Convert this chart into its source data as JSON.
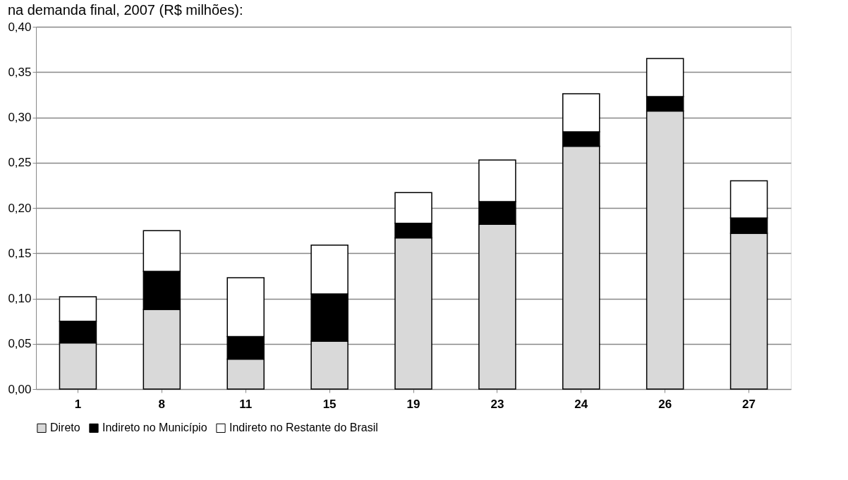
{
  "chart_data": {
    "type": "bar",
    "title": "na demanda final, 2007 (R$ milhões):",
    "categories": [
      "1",
      "8",
      "11",
      "15",
      "19",
      "23",
      "24",
      "26",
      "27"
    ],
    "stacked": true,
    "series": [
      {
        "name": "Direto",
        "color": "#d9d9d9",
        "values": [
          0.051,
          0.088,
          0.033,
          0.053,
          0.167,
          0.182,
          0.268,
          0.307,
          0.172
        ]
      },
      {
        "name": "Indireto no Município",
        "color": "#000000",
        "values": [
          0.024,
          0.042,
          0.025,
          0.052,
          0.016,
          0.025,
          0.016,
          0.016,
          0.017
        ]
      },
      {
        "name": "Indireto no Restante do Brasil",
        "color": "#ffffff",
        "values": [
          0.027,
          0.045,
          0.065,
          0.054,
          0.034,
          0.046,
          0.042,
          0.042,
          0.041
        ]
      }
    ],
    "ylim": [
      0,
      0.4
    ],
    "yticks": [
      {
        "value": 0,
        "label": "0,00"
      },
      {
        "value": 0.05,
        "label": "0,05"
      },
      {
        "value": 0.1,
        "label": "0,10"
      },
      {
        "value": 0.15,
        "label": "0,15"
      },
      {
        "value": 0.2,
        "label": "0,20"
      },
      {
        "value": 0.25,
        "label": "0,25"
      },
      {
        "value": 0.3,
        "label": "0,30"
      },
      {
        "value": 0.35,
        "label": "0,35"
      },
      {
        "value": 0.4,
        "label": "0,40"
      }
    ],
    "grid": "y",
    "legend": "bottom"
  }
}
